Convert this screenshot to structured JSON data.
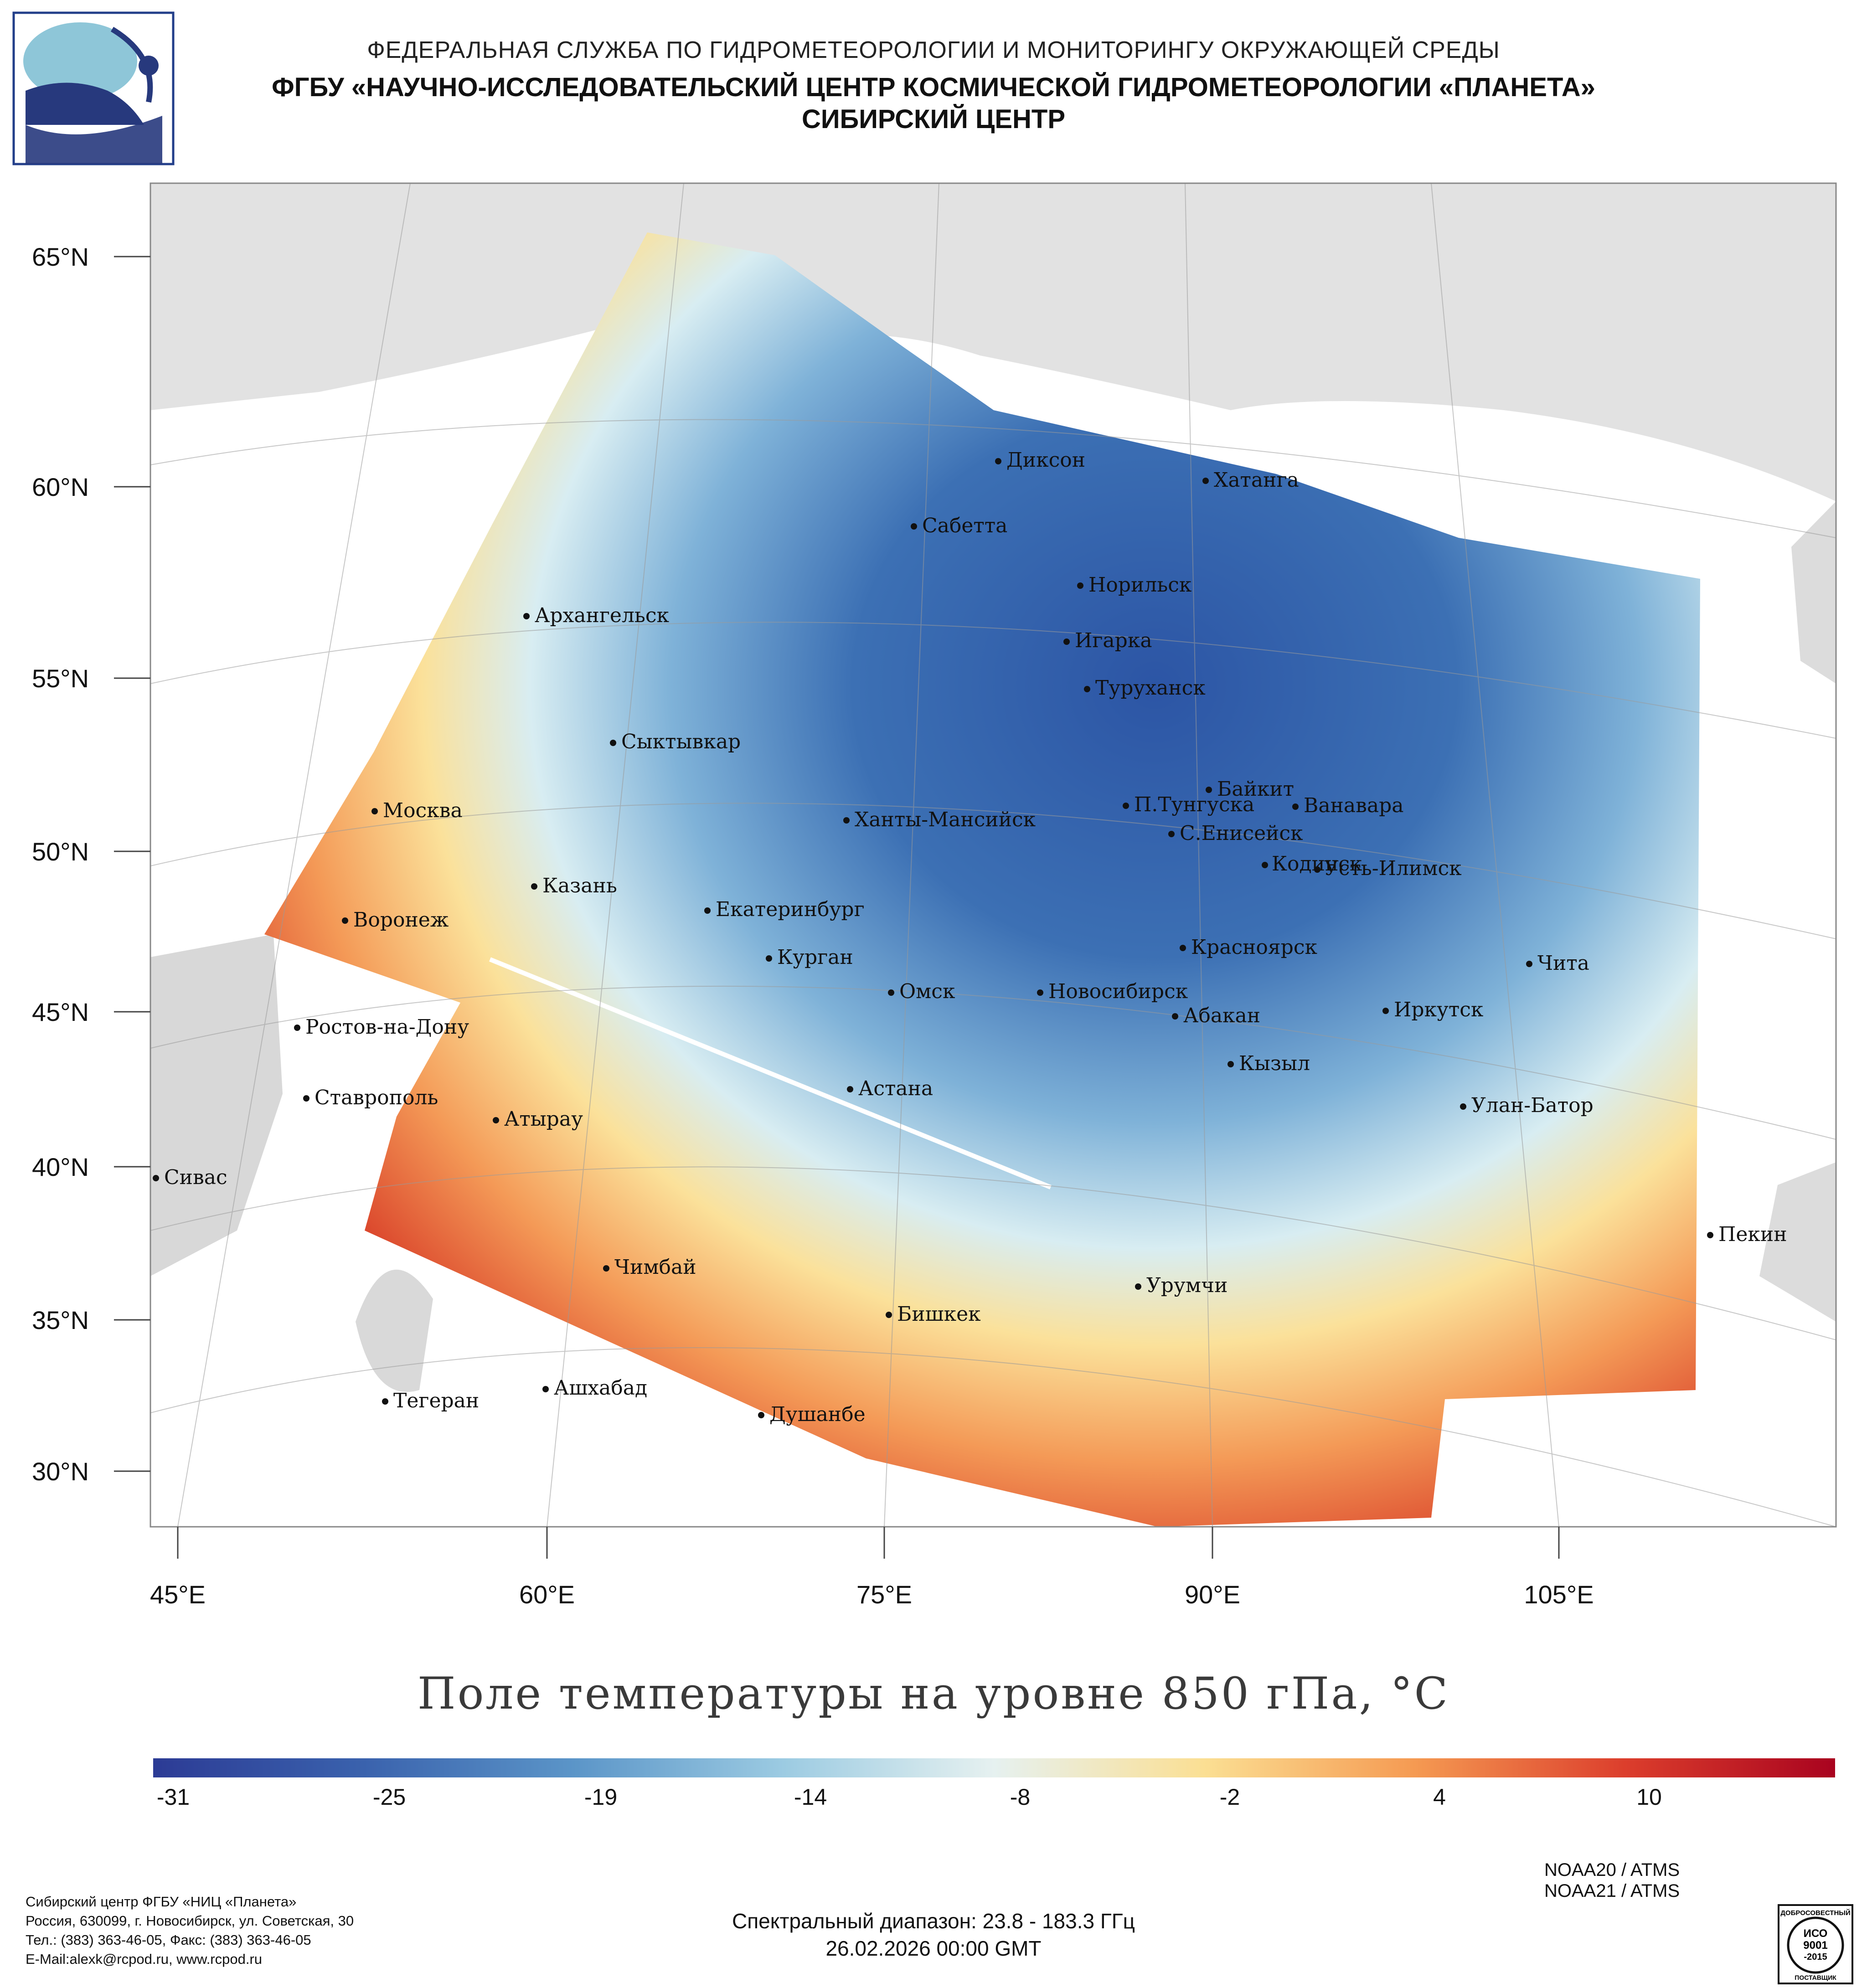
{
  "header": {
    "line1": "ФЕДЕРАЛЬНАЯ СЛУЖБА ПО ГИДРОМЕТЕОРОЛОГИИ И МОНИТОРИНГУ ОКРУЖАЮЩЕЙ СРЕДЫ",
    "line2": "ФГБУ «НАУЧНО-ИССЛЕДОВАТЕЛЬСКИЙ ЦЕНТР КОСМИЧЕСКОЙ ГИДРОМЕТЕОРОЛОГИИ «ПЛАНЕТА»",
    "line3": "СИБИРСКИЙ ЦЕНТР"
  },
  "lat_labels": [
    "65°N",
    "60°N",
    "55°N",
    "50°N",
    "45°N",
    "40°N",
    "35°N",
    "30°N"
  ],
  "lon_labels": [
    "45°E",
    "60°E",
    "75°E",
    "90°E",
    "105°E"
  ],
  "cities": [
    "Диксон",
    "Хатанга",
    "Сабетта",
    "Норильск",
    "Архангельск",
    "Игарка",
    "Туруханск",
    "Сыктывкар",
    "Байкит",
    "П.Тунгуска",
    "Ванавара",
    "Москва",
    "Ханты-Мансийск",
    "С.Енисейск",
    "Кодинск",
    "Усть-Илимск",
    "Казань",
    "Екатеринбург",
    "Воронеж",
    "Красноярск",
    "Курган",
    "Чита",
    "Омск",
    "Новосибирск",
    "Иркутск",
    "Ростов-на-Дону",
    "Абакан",
    "Кызыл",
    "Астана",
    "Ставрополь",
    "Улан-Батор",
    "Атырау",
    "Сивас",
    "Пекин",
    "Чимбай",
    "Урумчи",
    "Бишкек",
    "Ашхабад",
    "Тегеран",
    "Душанбе"
  ],
  "map_title": "Поле температуры на уровне 850 гПа, °C",
  "colorbar": {
    "ticks": [
      "-31",
      "-25",
      "-19",
      "-14",
      "-8",
      "-2",
      "4",
      "10"
    ],
    "colors": [
      "#2c3b95",
      "#3a62ad",
      "#5b95c8",
      "#9ccbe2",
      "#e6f1f0",
      "#fbdf93",
      "#f59a52",
      "#dc3e2c",
      "#a9031f"
    ]
  },
  "sensors": [
    "NOAA20 / ATMS",
    "NOAA21 / ATMS"
  ],
  "spectral": "Спектральный диапазон: 23.8 - 183.3 ГГц",
  "datetime": "26.02.2026 00:00 GMT",
  "footer": {
    "line1": "Сибирский центр ФГБУ «НИЦ «Планета»",
    "line2": "Россия, 630099, г. Новосибирск, ул. Советская, 30",
    "line3": "Тел.: (383) 363-46-05, Факс: (383) 363-46-05",
    "line4": "E-Mail:alexk@rcpod.ru, www.rcpod.ru"
  },
  "iso_badge": {
    "top": "ДОБРОСОВЕСТНЫЙ",
    "line1": "ИСО",
    "line2": "9001",
    "line3": "-2015",
    "bottom": "ПОСТАВЩИК"
  }
}
